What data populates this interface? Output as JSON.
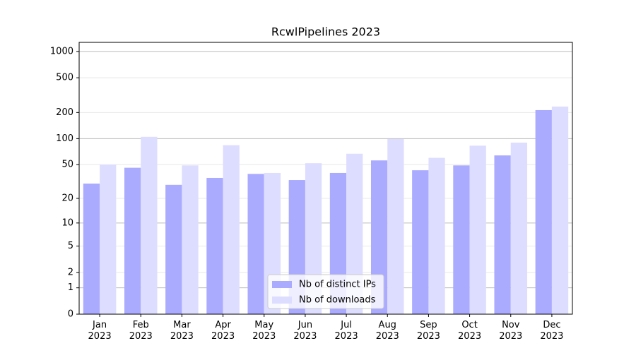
{
  "chart_data": {
    "type": "bar",
    "title": "RcwlPipelines 2023",
    "categories": [
      "Jan\n2023",
      "Feb\n2023",
      "Mar\n2023",
      "Apr\n2023",
      "May\n2023",
      "Jun\n2023",
      "Jul\n2023",
      "Aug\n2023",
      "Sep\n2023",
      "Oct\n2023",
      "Nov\n2023",
      "Dec\n2023"
    ],
    "series": [
      {
        "name": "Nb of distinct IPs",
        "color": "#aaaaff",
        "values": [
          30,
          46,
          29,
          35,
          39,
          33,
          40,
          56,
          43,
          49,
          64,
          213
        ]
      },
      {
        "name": "Nb of downloads",
        "color": "#ddddff",
        "values": [
          50,
          105,
          49,
          84,
          40,
          52,
          67,
          99,
          60,
          83,
          90,
          234
        ]
      }
    ],
    "yscale": "log1p",
    "ylim": [
      0,
      1270
    ],
    "yticks": [
      0,
      1,
      2,
      5,
      10,
      20,
      50,
      100,
      200,
      500,
      1000
    ],
    "grid": true,
    "legend": "lower center"
  }
}
